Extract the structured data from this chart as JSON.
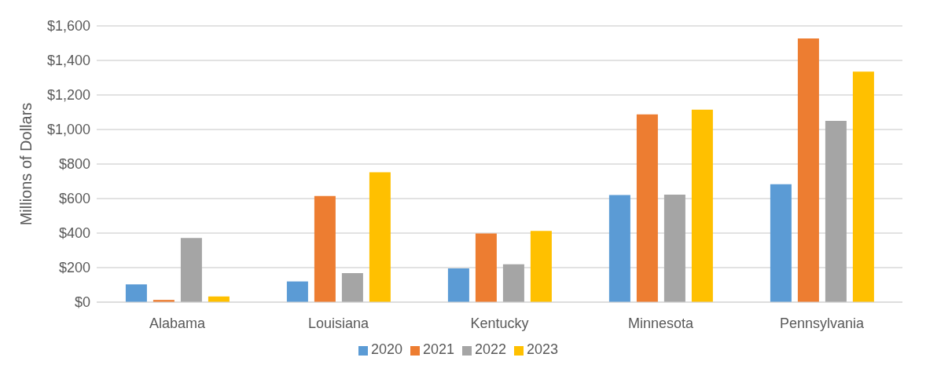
{
  "chart_data": {
    "type": "bar",
    "ylabel": "Millions of Dollars",
    "categories": [
      "Alabama",
      "Louisiana",
      "Kentucky",
      "Minnesota",
      "Pennsylvania"
    ],
    "series": [
      {
        "name": "2020",
        "color": "#5b9bd5",
        "values": [
          103,
          120,
          196,
          621,
          683
        ]
      },
      {
        "name": "2021",
        "color": "#ed7d31",
        "values": [
          13,
          615,
          398,
          1087,
          1527
        ]
      },
      {
        "name": "2022",
        "color": "#a5a5a5",
        "values": [
          372,
          168,
          219,
          623,
          1050
        ]
      },
      {
        "name": "2023",
        "color": "#ffc000",
        "values": [
          33,
          752,
          412,
          1115,
          1335
        ]
      }
    ],
    "ylim": [
      0,
      1600
    ],
    "yticks": [
      {
        "value": 0,
        "label": "$0"
      },
      {
        "value": 200,
        "label": "$200"
      },
      {
        "value": 400,
        "label": "$400"
      },
      {
        "value": 600,
        "label": "$600"
      },
      {
        "value": 800,
        "label": "$800"
      },
      {
        "value": 1000,
        "label": "$1,000"
      },
      {
        "value": 1200,
        "label": "$1,200"
      },
      {
        "value": 1400,
        "label": "$1,400"
      },
      {
        "value": 1600,
        "label": "$1,600"
      }
    ],
    "grid": "y",
    "legend": "bottom"
  }
}
